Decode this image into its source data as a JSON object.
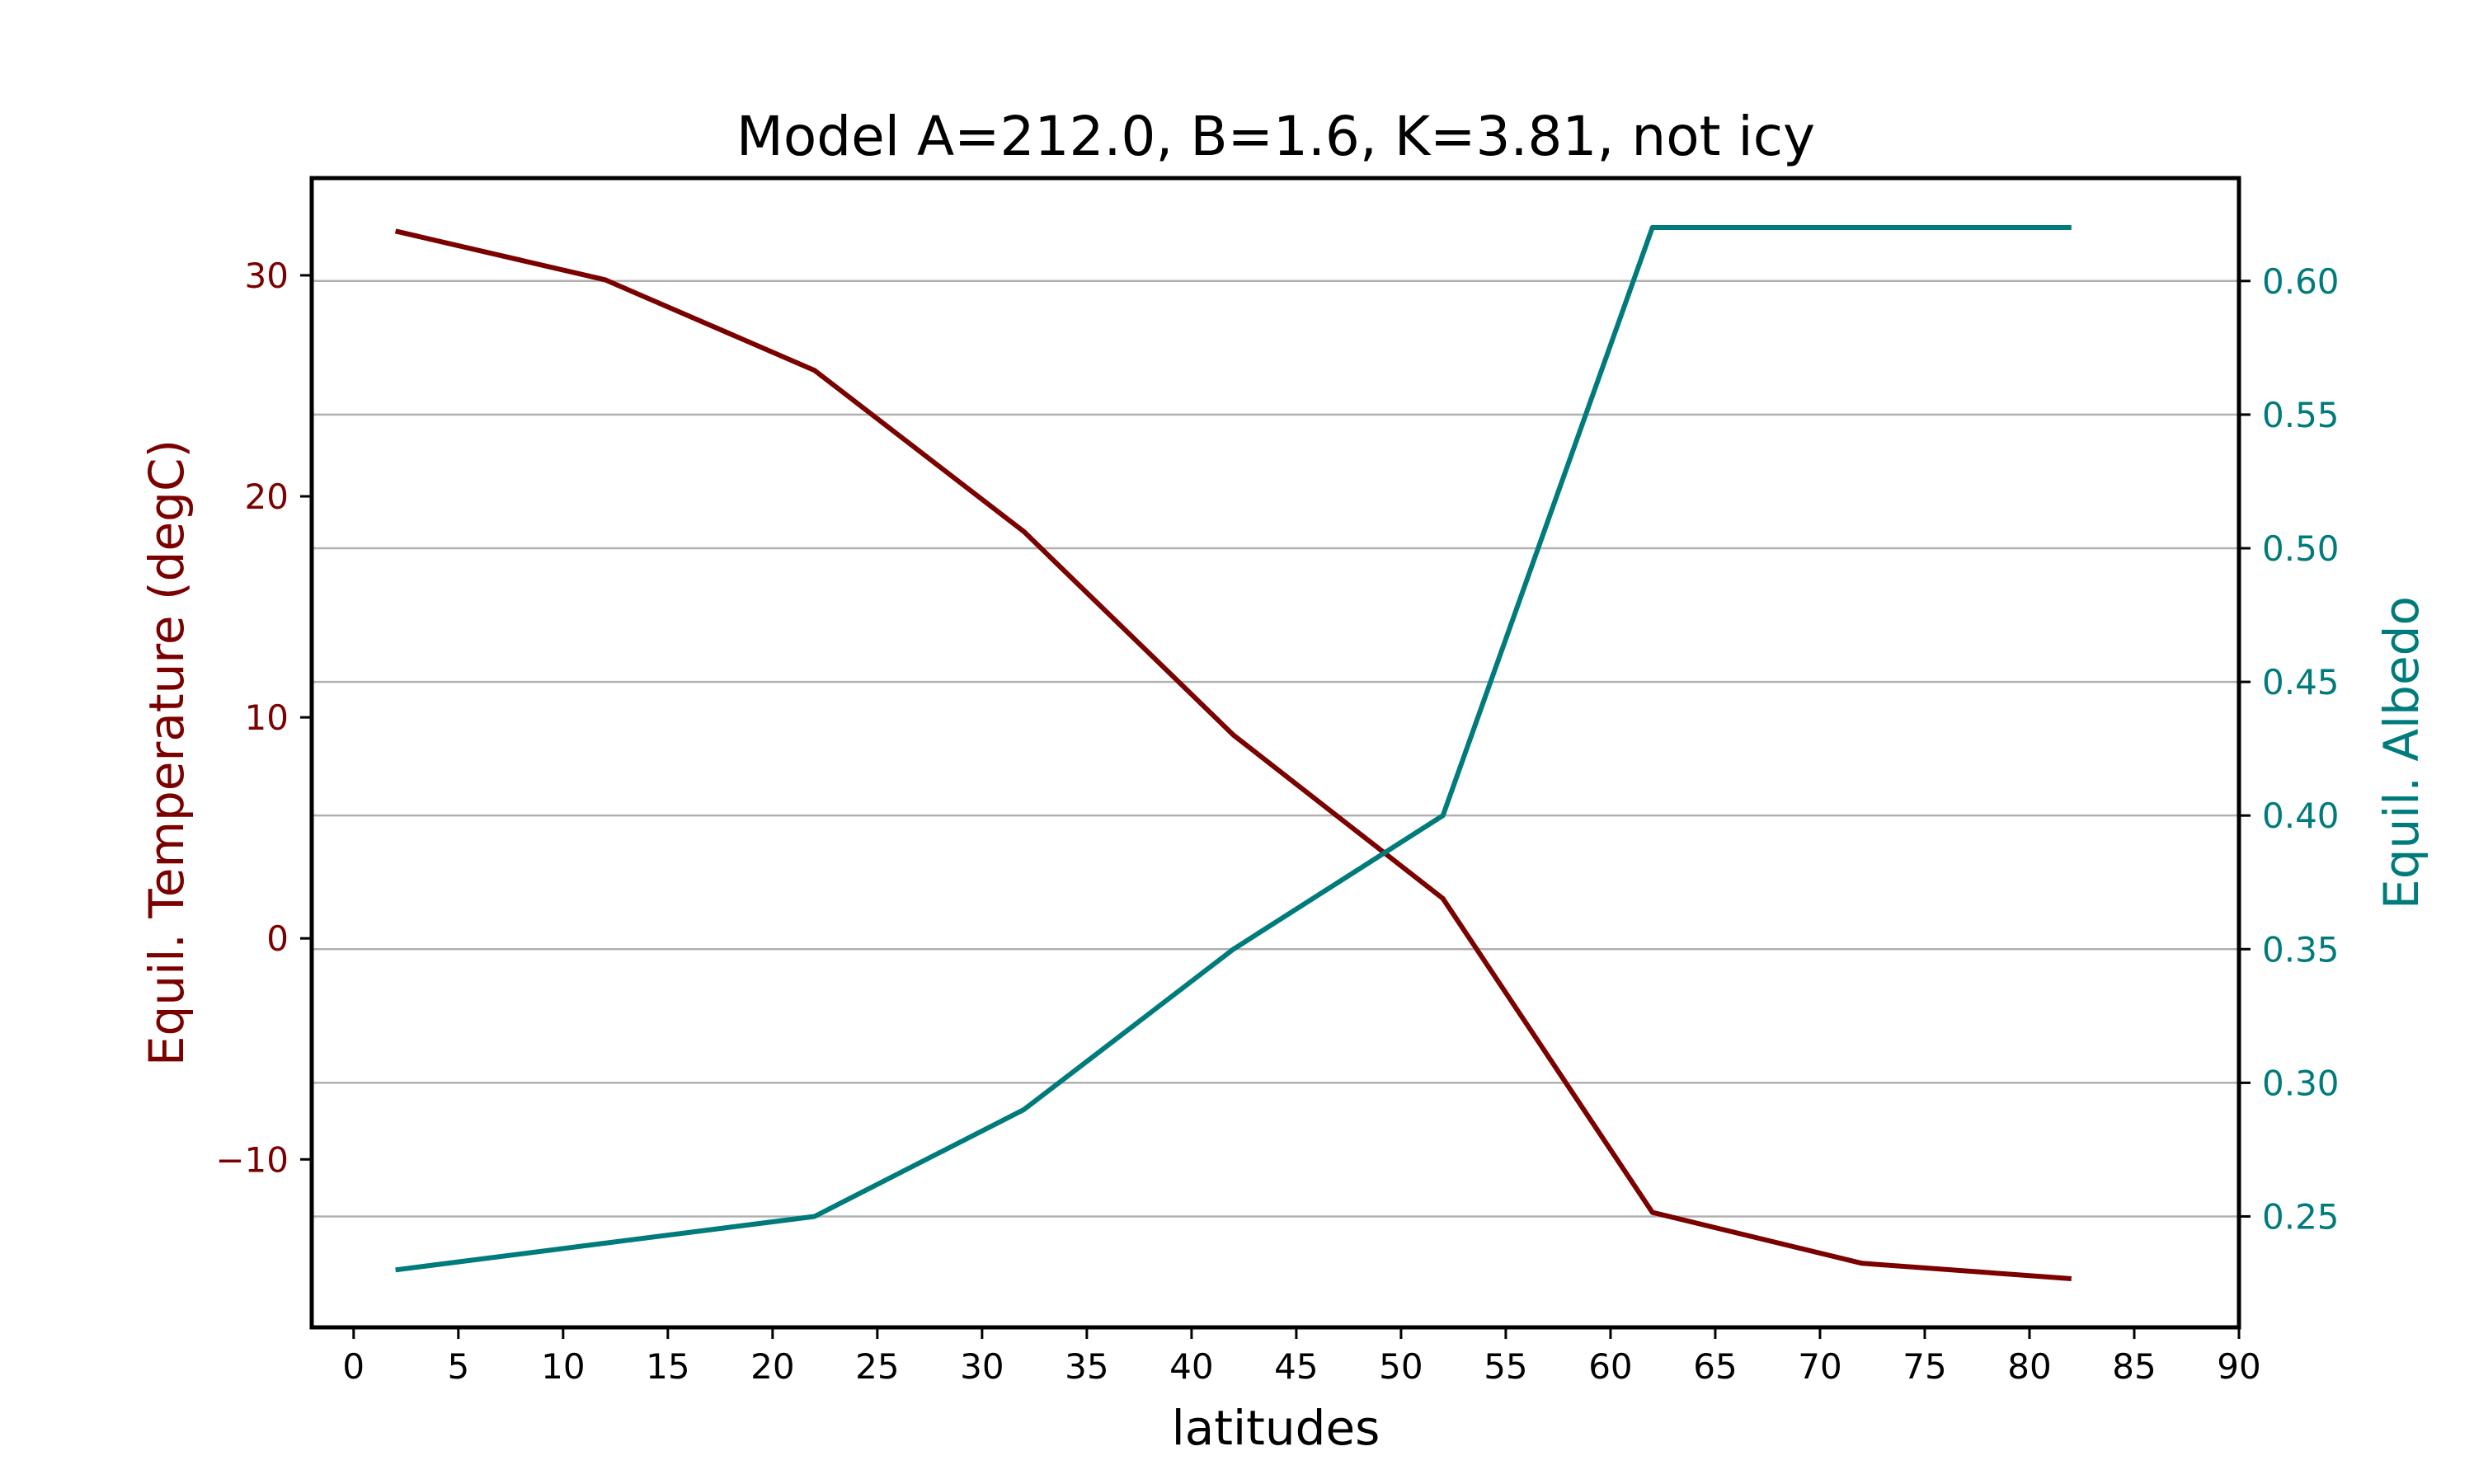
{
  "chart_data": {
    "type": "line",
    "title": "Model A=212.0, B=1.6, K=3.81, not icy",
    "xlabel": "latitudes",
    "ylabel_left": "Equil. Temperature (degC)",
    "ylabel_right": "Equil. Albedo",
    "xlim": [
      -2,
      90
    ],
    "ylim_left": [
      -17.6,
      34.4
    ],
    "ylim_right": [
      0.2085,
      0.6385
    ],
    "x_ticks": [
      "0",
      "5",
      "10",
      "15",
      "20",
      "25",
      "30",
      "35",
      "40",
      "45",
      "50",
      "55",
      "60",
      "65",
      "70",
      "75",
      "80",
      "85",
      "90"
    ],
    "y_ticks_left": [
      {
        "value": -10,
        "label": "−10"
      },
      {
        "value": 0,
        "label": "0"
      },
      {
        "value": 10,
        "label": "10"
      },
      {
        "value": 20,
        "label": "20"
      },
      {
        "value": 30,
        "label": "30"
      }
    ],
    "y_ticks_right": [
      {
        "value": 0.25,
        "label": "0.25"
      },
      {
        "value": 0.3,
        "label": "0.30"
      },
      {
        "value": 0.35,
        "label": "0.35"
      },
      {
        "value": 0.4,
        "label": "0.40"
      },
      {
        "value": 0.45,
        "label": "0.45"
      },
      {
        "value": 0.5,
        "label": "0.50"
      },
      {
        "value": 0.55,
        "label": "0.55"
      },
      {
        "value": 0.6,
        "label": "0.60"
      }
    ],
    "grid": "horizontal lines at right-axis ticks",
    "x": [
      2,
      12,
      22,
      32,
      42,
      52,
      62,
      72,
      82
    ],
    "series": [
      {
        "axis": "left",
        "color": "#7b0000",
        "values": [
          32.0,
          29.8,
          25.7,
          18.4,
          9.2,
          1.8,
          -12.4,
          -14.7,
          -15.4
        ]
      },
      {
        "axis": "right",
        "color": "#007b7b",
        "values": [
          0.23,
          0.24,
          0.25,
          0.29,
          0.35,
          0.4,
          0.62,
          0.62,
          0.62
        ]
      }
    ],
    "colors": {
      "left_axis": "#7b0000",
      "right_axis": "#007b7b",
      "grid": "#b0b0b0",
      "frame": "#000000"
    }
  }
}
